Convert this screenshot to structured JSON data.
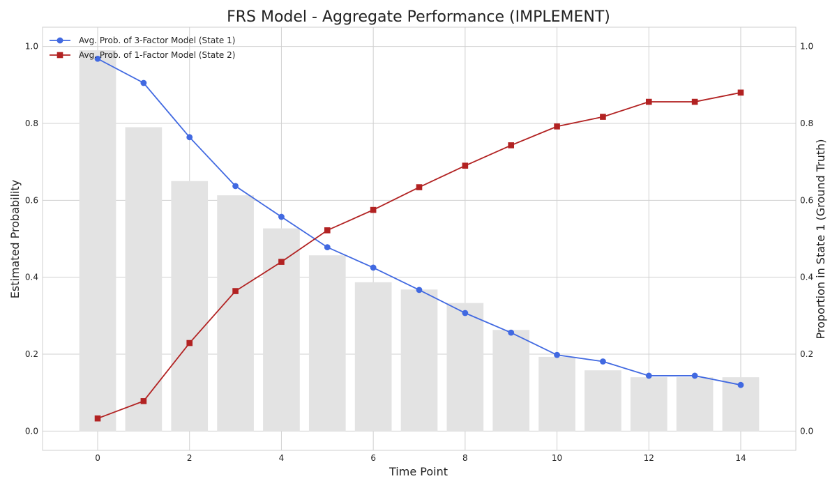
{
  "chart_data": {
    "type": "line",
    "title": "FRS Model - Aggregate Performance (IMPLEMENT)",
    "xlabel": "Time Point",
    "ylabel": "Estimated Probability",
    "y2label": "Proportion in State 1 (Ground Truth)",
    "x": [
      0,
      1,
      2,
      3,
      4,
      5,
      6,
      7,
      8,
      9,
      10,
      11,
      12,
      13,
      14
    ],
    "x_ticks": [
      0,
      2,
      4,
      6,
      8,
      10,
      12,
      14
    ],
    "xlim": [
      -1.2,
      15.2
    ],
    "ylim": [
      -0.05,
      1.05
    ],
    "y2lim": [
      -0.05,
      1.05
    ],
    "y_ticks": [
      0.0,
      0.2,
      0.4,
      0.6,
      0.8,
      1.0
    ],
    "grid": true,
    "legend_position": "top-left",
    "series": [
      {
        "name": "Avg. Prob. of 3-Factor Model (State 1)",
        "type": "line",
        "marker": "circle",
        "color": "#4169e1",
        "values": [
          0.968,
          0.905,
          0.764,
          0.637,
          0.557,
          0.478,
          0.425,
          0.367,
          0.307,
          0.256,
          0.198,
          0.181,
          0.144,
          0.144,
          0.12
        ]
      },
      {
        "name": "Avg. Prob. of 1-Factor Model (State 2)",
        "type": "line",
        "marker": "square",
        "color": "#b22222",
        "values": [
          0.033,
          0.078,
          0.229,
          0.364,
          0.44,
          0.522,
          0.575,
          0.634,
          0.69,
          0.743,
          0.792,
          0.817,
          0.856,
          0.856,
          0.88
        ]
      },
      {
        "name": "Proportion in State 1 (Ground Truth)",
        "type": "bar",
        "axis": "right",
        "color": "#e3e3e3",
        "values": [
          0.99,
          0.79,
          0.65,
          0.613,
          0.527,
          0.457,
          0.387,
          0.368,
          0.333,
          0.263,
          0.193,
          0.158,
          0.14,
          0.14,
          0.14
        ]
      }
    ]
  }
}
